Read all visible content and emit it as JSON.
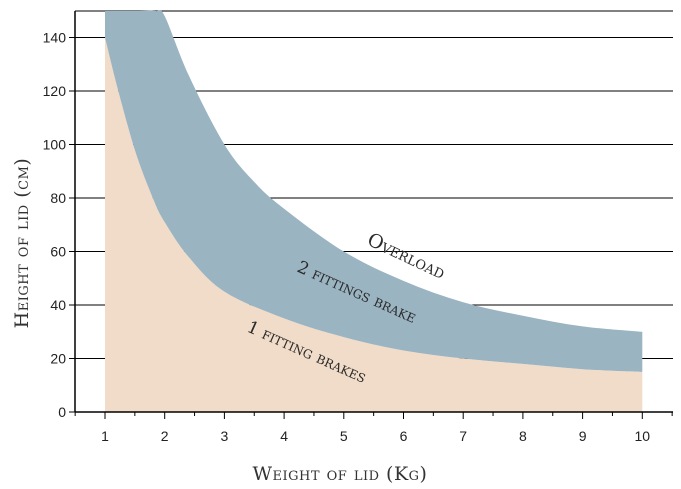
{
  "chart_data": {
    "type": "area",
    "title": "",
    "xlabel": "Weight of lid (Kg)",
    "ylabel": "Height of lid (cm)",
    "xlim": [
      0.5,
      10.5
    ],
    "ylim": [
      0,
      150
    ],
    "x_ticks": [
      1,
      2,
      3,
      4,
      5,
      6,
      7,
      8,
      9,
      10
    ],
    "y_ticks": [
      0,
      20,
      40,
      60,
      80,
      100,
      120,
      140
    ],
    "grid": "horizontal",
    "colors": {
      "one_fitting": "#f0dcc8",
      "two_fittings": "#9ab4c2",
      "grid": "#000000"
    },
    "series": [
      {
        "label": "1 fitting brakes",
        "x": [
          1,
          1.2,
          1.5,
          1.8,
          2,
          2.4,
          3,
          4,
          5,
          6,
          7,
          8,
          9,
          10
        ],
        "y_lower": [
          0,
          0,
          0,
          0,
          0,
          0,
          0,
          0,
          0,
          0,
          0,
          0,
          0,
          0
        ],
        "y_upper": [
          140,
          122,
          98,
          80,
          71,
          58,
          45,
          35,
          28,
          23,
          20,
          18,
          16,
          15
        ]
      },
      {
        "label": "2 fittings brake",
        "x": [
          1,
          1.5,
          1.85,
          2,
          2.4,
          3,
          3.5,
          4,
          5,
          6,
          7,
          8,
          9,
          10
        ],
        "y_lower": [
          150,
          150,
          150,
          148,
          126,
          100,
          86,
          76,
          60,
          49,
          41,
          36,
          32,
          30
        ],
        "y_upper": [
          150,
          150,
          150,
          150,
          150,
          150,
          150,
          150,
          150,
          150,
          150,
          150,
          150,
          150
        ],
        "lower_boundary_x": [
          1,
          1.2,
          1.5,
          1.8,
          2,
          2.4,
          3,
          4,
          5,
          6,
          7,
          8,
          9,
          10
        ],
        "lower_boundary_y": [
          140,
          122,
          98,
          80,
          71,
          58,
          45,
          35,
          28,
          23,
          20,
          18,
          16,
          15
        ]
      }
    ],
    "annotations": [
      {
        "text": "Overload"
      },
      {
        "text": "2 fittings brake"
      },
      {
        "text": "1 fitting brakes"
      }
    ]
  }
}
